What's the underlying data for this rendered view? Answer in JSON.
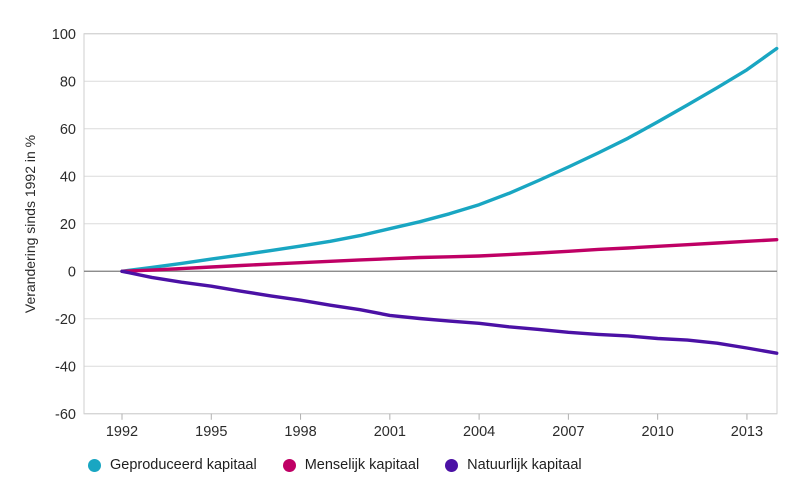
{
  "chart_data": {
    "type": "line",
    "title": "",
    "xlabel": "",
    "ylabel": "Verandering sinds 1992 in %",
    "xlim": [
      1992,
      2014
    ],
    "ylim": [
      -60,
      100
    ],
    "x_ticks": [
      1992,
      1995,
      1998,
      2001,
      2004,
      2007,
      2010,
      2013
    ],
    "y_ticks": [
      -60,
      -40,
      -20,
      0,
      20,
      40,
      60,
      80,
      100
    ],
    "grid": "horizontal",
    "legend_position": "bottom",
    "x": [
      1992,
      1993,
      1994,
      1995,
      1996,
      1997,
      1998,
      1999,
      2000,
      2001,
      2002,
      2003,
      2004,
      2005,
      2006,
      2007,
      2008,
      2009,
      2010,
      2011,
      2012,
      2013,
      2014
    ],
    "series": [
      {
        "name": "Geproduceerd kapitaal",
        "color": "#19a6c2",
        "values": [
          0,
          1.6,
          3.3,
          5.1,
          6.9,
          8.7,
          10.6,
          12.6,
          15.0,
          17.9,
          20.8,
          24.2,
          28.0,
          32.8,
          38.2,
          43.9,
          49.8,
          56.0,
          62.9,
          70.0,
          77.3,
          84.8,
          93.8
        ]
      },
      {
        "name": "Menselijk kapitaal",
        "color": "#bf0065",
        "values": [
          0,
          0.5,
          1.1,
          1.8,
          2.4,
          3.0,
          3.6,
          4.2,
          4.8,
          5.3,
          5.8,
          6.1,
          6.4,
          7.0,
          7.7,
          8.4,
          9.2,
          9.8,
          10.5,
          11.2,
          11.9,
          12.6,
          13.3
        ]
      },
      {
        "name": "Natuurlijk kapitaal",
        "color": "#4b11a5",
        "values": [
          0,
          -2.6,
          -4.6,
          -6.3,
          -8.4,
          -10.4,
          -12.2,
          -14.3,
          -16.2,
          -18.6,
          -19.9,
          -21.0,
          -21.9,
          -23.4,
          -24.5,
          -25.7,
          -26.6,
          -27.2,
          -28.3,
          -29.0,
          -30.3,
          -32.3,
          -34.5
        ]
      }
    ]
  },
  "colors": {
    "background": "#ffffff",
    "grid_line": "#dcdcdc",
    "zero_line": "#7d7d7d",
    "plot_border": "#cfcfcf",
    "tick_mark": "#b0b0b0",
    "tick_text": "#2b2b2b",
    "legend_text": "#1f1f1f"
  }
}
